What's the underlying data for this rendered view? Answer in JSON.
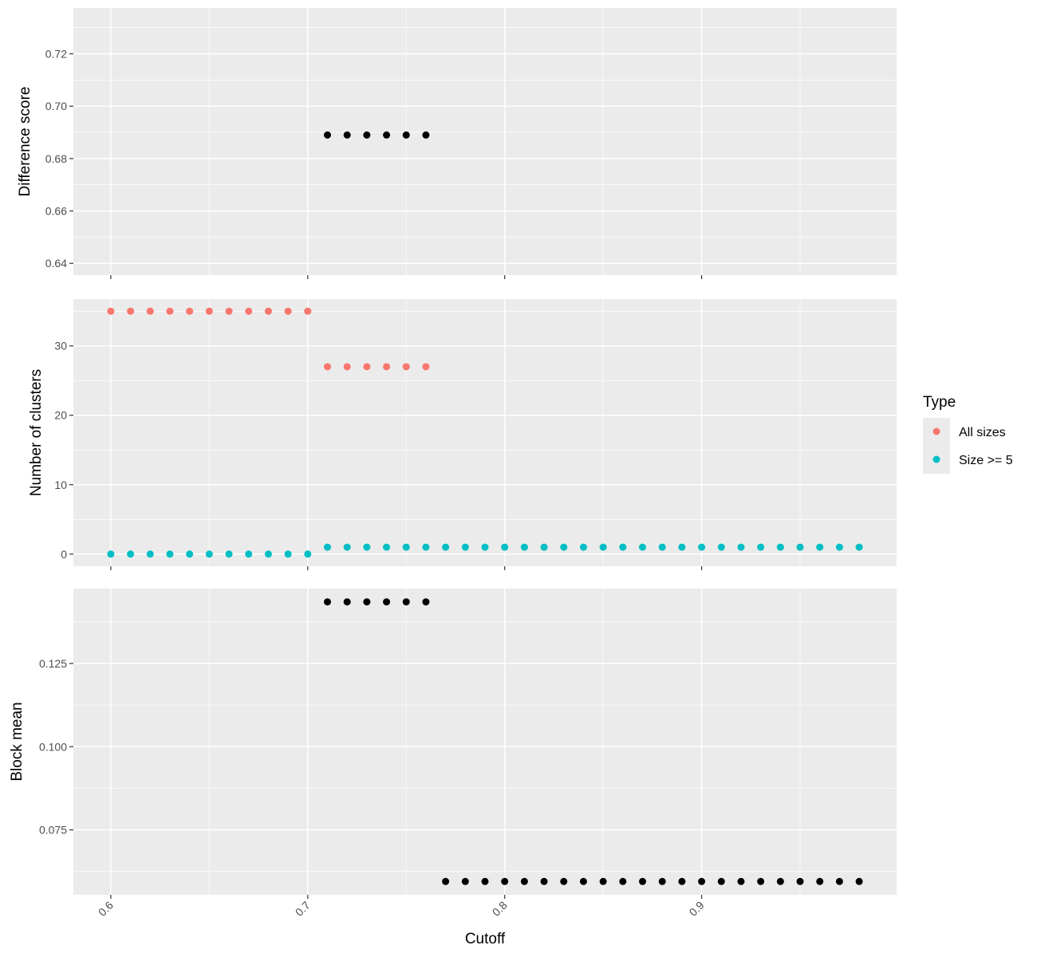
{
  "chart_data": {
    "type": "scatter",
    "xlabel": "Cutoff",
    "x_ticks": [
      0.6,
      0.7,
      0.8,
      0.9
    ],
    "xlim": [
      0.581,
      0.999
    ],
    "grid": true,
    "legend": {
      "title": "Type",
      "placement": "right",
      "entries": [
        {
          "label": "All sizes",
          "color": "#F8766D"
        },
        {
          "label": "Size >= 5",
          "color": "#00BFC4"
        }
      ]
    },
    "panels": [
      {
        "ylabel": "Difference score",
        "ylim": [
          0.6355,
          0.7375
        ],
        "y_ticks": [
          0.64,
          0.66,
          0.68,
          0.7,
          0.72
        ],
        "y_tick_labels": [
          "0.64",
          "0.66",
          "0.68",
          "0.70",
          "0.72"
        ],
        "series": [
          {
            "color": "#000000",
            "x": [
              0.71,
              0.72,
              0.73,
              0.74,
              0.75,
              0.76
            ],
            "y": [
              0.689,
              0.689,
              0.689,
              0.689,
              0.689,
              0.689
            ]
          }
        ]
      },
      {
        "ylabel": "Number of clusters",
        "ylim": [
          -1.75,
          36.75
        ],
        "y_ticks": [
          0,
          10,
          20,
          30
        ],
        "y_tick_labels": [
          "0",
          "10",
          "20",
          "30"
        ],
        "series": [
          {
            "name": "All sizes",
            "color": "#F8766D",
            "x": [
              0.6,
              0.61,
              0.62,
              0.63,
              0.64,
              0.65,
              0.66,
              0.67,
              0.68,
              0.69,
              0.7,
              0.71,
              0.72,
              0.73,
              0.74,
              0.75,
              0.76
            ],
            "y": [
              35,
              35,
              35,
              35,
              35,
              35,
              35,
              35,
              35,
              35,
              35,
              27,
              27,
              27,
              27,
              27,
              27
            ]
          },
          {
            "name": "Size >= 5",
            "color": "#00BFC4",
            "x": [
              0.6,
              0.61,
              0.62,
              0.63,
              0.64,
              0.65,
              0.66,
              0.67,
              0.68,
              0.69,
              0.7,
              0.71,
              0.72,
              0.73,
              0.74,
              0.75,
              0.76,
              0.77,
              0.78,
              0.79,
              0.8,
              0.81,
              0.82,
              0.83,
              0.84,
              0.85,
              0.86,
              0.87,
              0.88,
              0.89,
              0.9,
              0.91,
              0.92,
              0.93,
              0.94,
              0.95,
              0.96,
              0.97,
              0.98
            ],
            "y": [
              0,
              0,
              0,
              0,
              0,
              0,
              0,
              0,
              0,
              0,
              0,
              1,
              1,
              1,
              1,
              1,
              1,
              1,
              1,
              1,
              1,
              1,
              1,
              1,
              1,
              1,
              1,
              1,
              1,
              1,
              1,
              1,
              1,
              1,
              1,
              1,
              1,
              1,
              1
            ]
          }
        ]
      },
      {
        "ylabel": "Block mean",
        "ylim": [
          0.0555,
          0.1475
        ],
        "y_ticks": [
          0.075,
          0.1,
          0.125
        ],
        "y_tick_labels": [
          "0.075",
          "0.100",
          "0.125"
        ],
        "series": [
          {
            "color": "#000000",
            "x": [
              0.71,
              0.72,
              0.73,
              0.74,
              0.75,
              0.76,
              0.77,
              0.78,
              0.79,
              0.8,
              0.81,
              0.82,
              0.83,
              0.84,
              0.85,
              0.86,
              0.87,
              0.88,
              0.89,
              0.9,
              0.91,
              0.92,
              0.93,
              0.94,
              0.95,
              0.96,
              0.97,
              0.98
            ],
            "y": [
              0.1435,
              0.1435,
              0.1435,
              0.1435,
              0.1435,
              0.1435,
              0.0595,
              0.0595,
              0.0595,
              0.0595,
              0.0595,
              0.0595,
              0.0595,
              0.0595,
              0.0595,
              0.0595,
              0.0595,
              0.0595,
              0.0595,
              0.0595,
              0.0595,
              0.0595,
              0.0595,
              0.0595,
              0.0595,
              0.0595,
              0.0595,
              0.0595
            ]
          }
        ]
      }
    ]
  }
}
